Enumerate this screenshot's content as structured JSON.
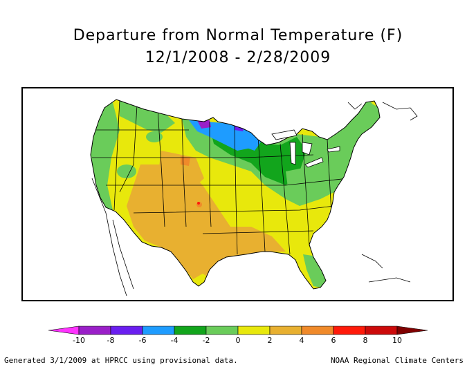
{
  "title": {
    "line1": "Departure from Normal Temperature (F)",
    "line2": "12/1/2008 - 2/28/2009"
  },
  "legend": {
    "ticks": [
      "-10",
      "-8",
      "-6",
      "-4",
      "-2",
      "0",
      "2",
      "4",
      "6",
      "8",
      "10"
    ],
    "bins": [
      {
        "range": "< -10",
        "color": "#ff33ff"
      },
      {
        "range": "-10 to -8",
        "color": "#9a1fc8"
      },
      {
        "range": "-8 to -6",
        "color": "#6a1ef0"
      },
      {
        "range": "-6 to -4",
        "color": "#1e9cff"
      },
      {
        "range": "-4 to -2",
        "color": "#12a51c"
      },
      {
        "range": "-2 to 0",
        "color": "#6acc5a"
      },
      {
        "range": "0 to 2",
        "color": "#e8e80c"
      },
      {
        "range": "2 to 4",
        "color": "#e8b030"
      },
      {
        "range": "4 to 6",
        "color": "#f08a2a"
      },
      {
        "range": "6 to 8",
        "color": "#ff1a0a"
      },
      {
        "range": "8 to 10",
        "color": "#cc0a0a"
      },
      {
        "range": "> 10",
        "color": "#800000"
      }
    ]
  },
  "map": {
    "region": "Contiguous United States",
    "colors": {
      "neutral_warm": "#e8e80c",
      "cool": "#6acc5a",
      "cold": "#12a51c",
      "very_cold": "#1e9cff",
      "coldest": "#9a1fc8",
      "warm": "#e8b030",
      "hot": "#f08a2a",
      "very_hot": "#ff1a0a"
    }
  },
  "footer": {
    "left": "Generated 3/1/2009 at HPRCC using provisional data.",
    "right": "NOAA Regional Climate Centers"
  }
}
